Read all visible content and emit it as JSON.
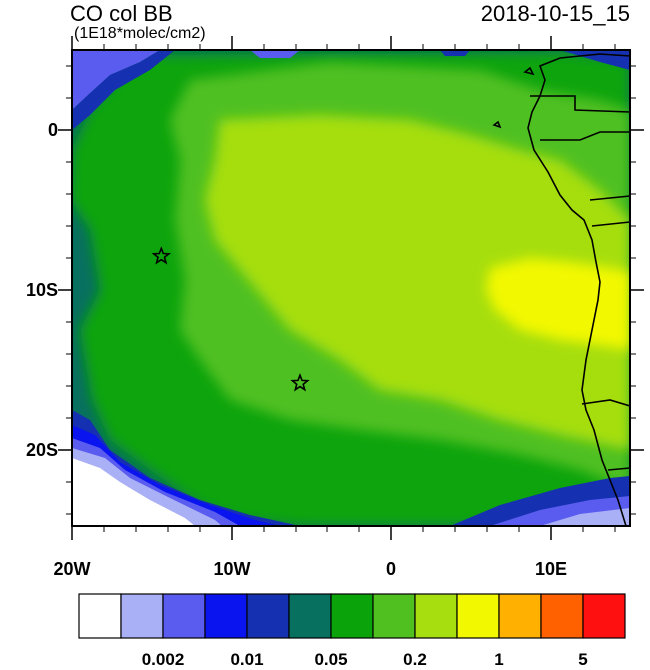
{
  "title": "CO col BB",
  "units": "(1E18*molec/cm2)",
  "datetime": "2018-10-15_15",
  "map": {
    "lon_range": [
      -20,
      15
    ],
    "lat_range": [
      -25,
      5
    ],
    "x_ticks": [
      {
        "lon": -20,
        "label": "20W"
      },
      {
        "lon": -10,
        "label": "10W"
      },
      {
        "lon": 0,
        "label": "0"
      },
      {
        "lon": 10,
        "label": "10E"
      }
    ],
    "y_ticks": [
      {
        "lat": 0,
        "label": "0"
      },
      {
        "lat": -10,
        "label": "10S"
      },
      {
        "lat": -20,
        "label": "20S"
      }
    ],
    "star_markers": [
      {
        "lon": -14.4,
        "lat": -8.0
      },
      {
        "lon": -5.7,
        "lat": -16.0
      }
    ]
  },
  "colorbar": {
    "colors": [
      "#ffffff",
      "#aab0f5",
      "#5a5cf0",
      "#0a14ee",
      "#1530b0",
      "#08705e",
      "#0aa40a",
      "#50c020",
      "#a6de10",
      "#f2f800",
      "#ffb000",
      "#ff6000",
      "#ff1010"
    ],
    "labels": [
      {
        "text": "0.002",
        "boundary": 2
      },
      {
        "text": "0.01",
        "boundary": 4
      },
      {
        "text": "0.05",
        "boundary": 6
      },
      {
        "text": "0.2",
        "boundary": 8
      },
      {
        "text": "1",
        "boundary": 10
      },
      {
        "text": "5",
        "boundary": 12
      }
    ]
  }
}
